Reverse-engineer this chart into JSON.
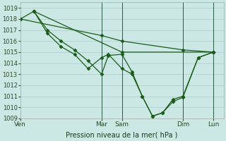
{
  "background_color": "#cce8e4",
  "grid_color": "#aacccc",
  "line_color": "#1a5c1a",
  "xlabel": "Pression niveau de la mer( hPa )",
  "ylim": [
    1009,
    1019.5
  ],
  "yticks": [
    1009,
    1010,
    1011,
    1012,
    1013,
    1014,
    1015,
    1016,
    1017,
    1018,
    1019
  ],
  "xlim": [
    0,
    240
  ],
  "day_ticks": [
    0,
    96,
    120,
    192,
    228
  ],
  "day_labels": [
    "Ven",
    "Mar",
    "Sam",
    "Dim",
    "Lun"
  ],
  "vlines": [
    96,
    120,
    192,
    228
  ],
  "series": [
    {
      "x": [
        0,
        96,
        120,
        192,
        228
      ],
      "y": [
        1018.0,
        1016.5,
        1016.0,
        1015.2,
        1015.0
      ],
      "style": "-",
      "marker": "D",
      "markersize": 2.5,
      "linewidth": 0.9
    },
    {
      "x": [
        0,
        16,
        32,
        48,
        64,
        80,
        96,
        104,
        120,
        132,
        144,
        156,
        168,
        180,
        192,
        210,
        228
      ],
      "y": [
        1018.0,
        1018.7,
        1017.0,
        1016.0,
        1015.2,
        1014.2,
        1013.0,
        1014.7,
        1014.8,
        1013.2,
        1011.0,
        1009.2,
        1009.5,
        1010.7,
        1011.0,
        1014.5,
        1015.0
      ],
      "style": "-",
      "marker": "D",
      "markersize": 2.5,
      "linewidth": 0.9
    },
    {
      "x": [
        16,
        32,
        48,
        64,
        80,
        96,
        104,
        120,
        132,
        144,
        156,
        168,
        180,
        192,
        210,
        228
      ],
      "y": [
        1018.7,
        1016.7,
        1015.5,
        1014.8,
        1013.5,
        1014.5,
        1014.8,
        1013.5,
        1013.0,
        1011.0,
        1009.2,
        1009.5,
        1010.5,
        1010.9,
        1014.5,
        1015.0
      ],
      "style": "-",
      "marker": "D",
      "markersize": 2.5,
      "linewidth": 0.9
    },
    {
      "x": [
        16,
        120,
        228
      ],
      "y": [
        1018.7,
        1015.0,
        1015.0
      ],
      "style": "-",
      "marker": "D",
      "markersize": 2.5,
      "linewidth": 0.9
    }
  ]
}
